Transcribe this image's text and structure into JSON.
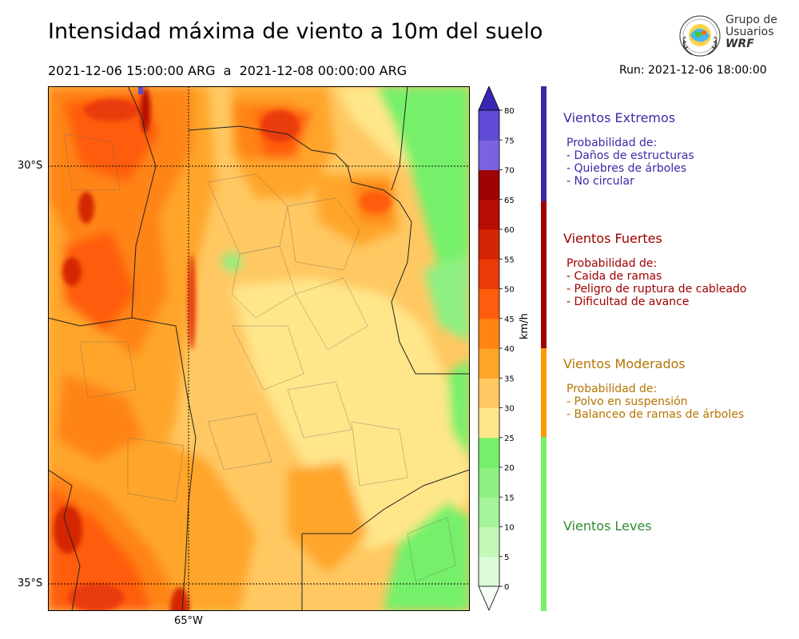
{
  "header": {
    "title": "Intensidad máxima de viento a 10m del suelo",
    "period": "2021-12-06 15:00:00 ARG  a  2021-12-08 00:00:00 ARG",
    "run": "Run: 2021-12-06 18:00:00"
  },
  "logo": {
    "line1": "Grupo de",
    "line2": "Usuarios",
    "line3": "WRF"
  },
  "map": {
    "lat_labels": [
      "30°S",
      "35°S"
    ],
    "lon_labels": [
      "65°W"
    ]
  },
  "colorbar": {
    "unit": "km/h",
    "ticks": [
      "0",
      "5",
      "10",
      "15",
      "20",
      "25",
      "30",
      "35",
      "40",
      "45",
      "50",
      "55",
      "60",
      "65",
      "70",
      "75",
      "80"
    ],
    "colors": [
      "#f5fff5",
      "#dbfcd6",
      "#c2f8b8",
      "#a5f39a",
      "#8ef082",
      "#76f06a",
      "#ffe68a",
      "#ffc862",
      "#ffa529",
      "#ff8412",
      "#ff5d0d",
      "#ea3a07",
      "#d42604",
      "#b60d04",
      "#a00303",
      "#7a62e0",
      "#5f4ad6",
      "#4a34c8",
      "#3a26b4"
    ],
    "range": [
      0,
      80
    ]
  },
  "categories": [
    {
      "title": "Vientos Extremos",
      "color": "#3a2aa8",
      "intro": "Probabilidad de:",
      "items": [
        "- Daños de estructuras",
        "- Quiebres de árboles",
        "- No circular"
      ]
    },
    {
      "title": "Vientos Fuertes",
      "color": "#a00000",
      "intro": "Probabilidad de:",
      "items": [
        "- Caida de ramas",
        "- Peligro de ruptura de cableado",
        "- Dificultad de avance"
      ]
    },
    {
      "title": "Vientos Moderados",
      "color": "#b57400",
      "intro": "Probabilidad de:",
      "items": [
        "- Polvo en suspensión",
        "- Balanceo de ramas de árboles"
      ]
    },
    {
      "title": "Vientos Leves",
      "color": "#2e8b2e",
      "intro": "",
      "items": []
    }
  ],
  "category_bar_colors": [
    "#3a2aa8",
    "#a00000",
    "#ff9900",
    "#76f06a"
  ]
}
